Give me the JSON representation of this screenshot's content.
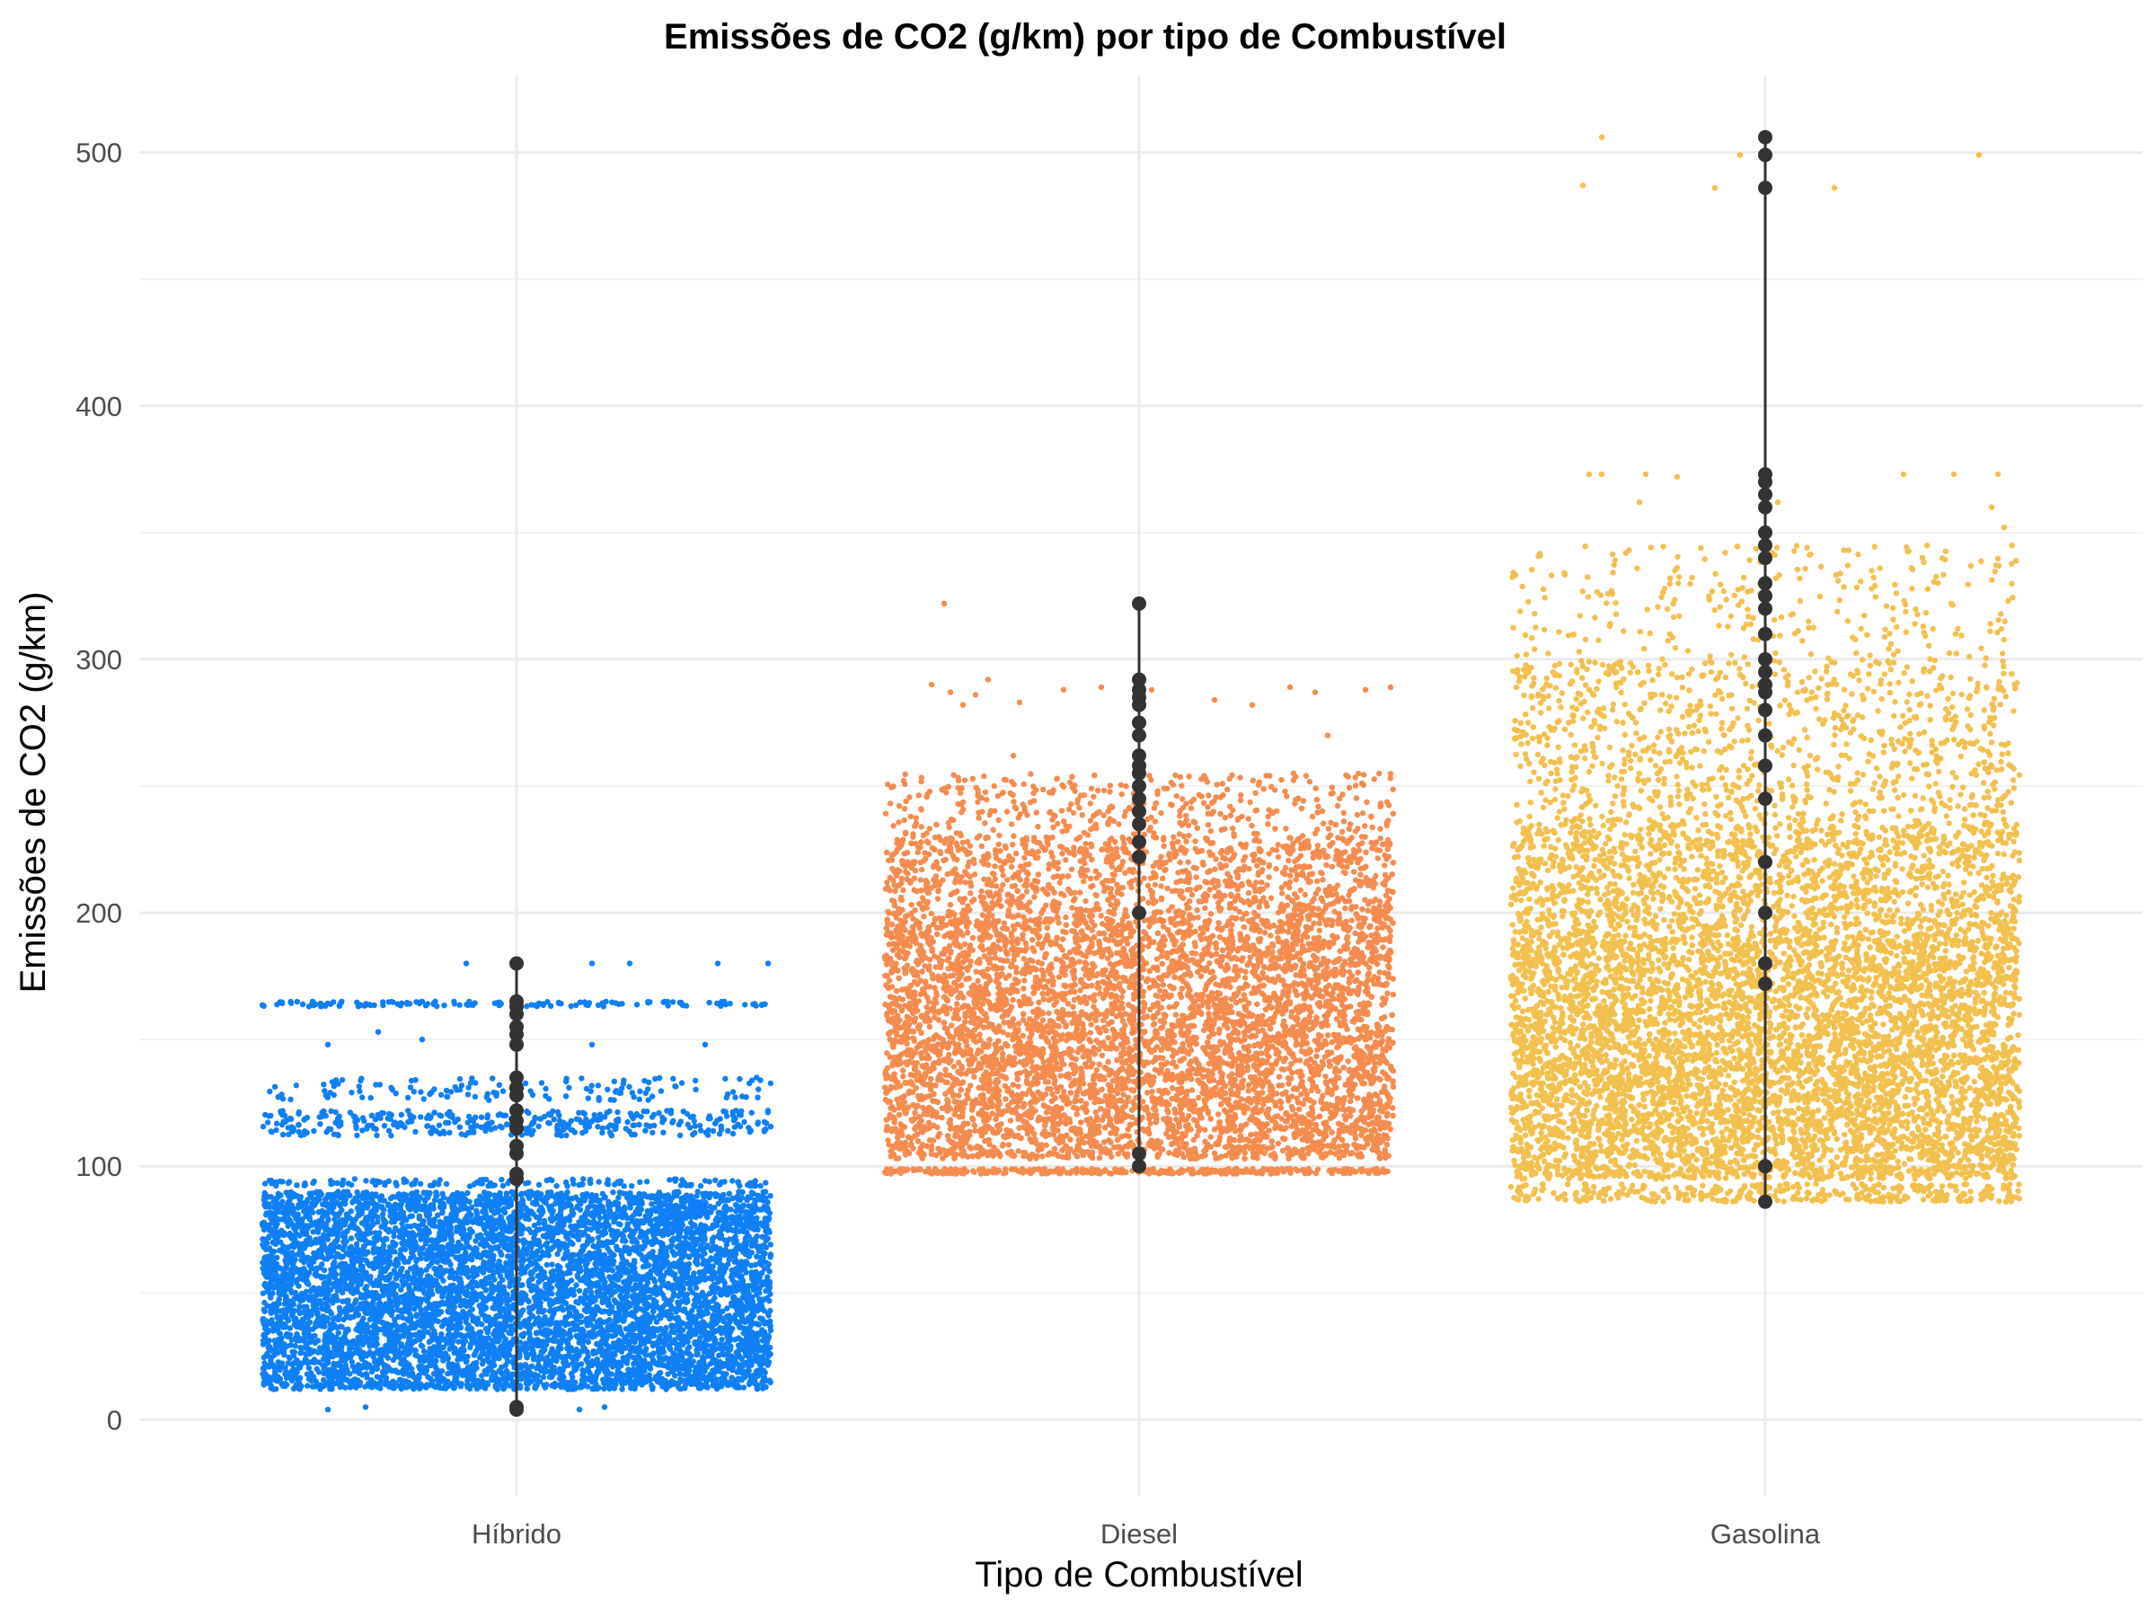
{
  "chart_data": {
    "type": "scatter",
    "title": "Emissões de CO2 (g/km) por tipo de Combustível",
    "xlabel": "Tipo de Combustível",
    "ylabel": "Emissões de CO2 (g/km)",
    "categories": [
      "Híbrido",
      "Diesel",
      "Gasolina"
    ],
    "ylim": [
      -30,
      530
    ],
    "yticks": [
      0,
      100,
      200,
      300,
      400,
      500
    ],
    "grid": true,
    "legend": "none",
    "series": [
      {
        "category": "Híbrido",
        "color": "#0f7ff5",
        "bands": [
          {
            "min": 12,
            "max": 90,
            "density": "very-high"
          },
          {
            "min": 92,
            "max": 95,
            "density": "medium"
          },
          {
            "min": 112,
            "max": 122,
            "density": "high"
          },
          {
            "min": 126,
            "max": 135,
            "density": "medium"
          },
          {
            "min": 163,
            "max": 165,
            "density": "medium"
          }
        ],
        "points": [
          4,
          5,
          5,
          106,
          108,
          148,
          149,
          150,
          153,
          155,
          160,
          180,
          180,
          180,
          180,
          180
        ],
        "jitter_points": [
          {
            "x": -0.3,
            "y": 148
          },
          {
            "x": -0.22,
            "y": 153
          },
          {
            "x": -0.15,
            "y": 150
          },
          {
            "x": 0.12,
            "y": 148
          },
          {
            "x": 0.3,
            "y": 148
          },
          {
            "x": -0.08,
            "y": 180
          },
          {
            "x": 0.12,
            "y": 180
          },
          {
            "x": 0.18,
            "y": 180
          },
          {
            "x": 0.32,
            "y": 180
          },
          {
            "x": 0.4,
            "y": 180
          },
          {
            "x": -0.3,
            "y": 4
          },
          {
            "x": -0.24,
            "y": 5
          },
          {
            "x": 0.1,
            "y": 4
          },
          {
            "x": 0.14,
            "y": 5
          }
        ],
        "median_points": [
          4,
          5,
          95,
          97,
          105,
          108,
          115,
          118,
          122,
          128,
          131,
          135,
          148,
          152,
          155,
          160,
          163,
          165,
          180
        ]
      },
      {
        "category": "Diesel",
        "color": "#f58c4e",
        "bands": [
          {
            "min": 103,
            "max": 198,
            "density": "very-high"
          },
          {
            "min": 198,
            "max": 230,
            "density": "high"
          },
          {
            "min": 230,
            "max": 255,
            "density": "medium"
          },
          {
            "min": 97,
            "max": 99,
            "density": "high"
          }
        ],
        "jitter_points": [
          {
            "x": -0.33,
            "y": 290
          },
          {
            "x": -0.3,
            "y": 287
          },
          {
            "x": -0.28,
            "y": 282
          },
          {
            "x": -0.26,
            "y": 286
          },
          {
            "x": -0.24,
            "y": 292
          },
          {
            "x": -0.19,
            "y": 283
          },
          {
            "x": -0.12,
            "y": 288
          },
          {
            "x": -0.06,
            "y": 289
          },
          {
            "x": 0.02,
            "y": 288
          },
          {
            "x": 0.12,
            "y": 284
          },
          {
            "x": 0.18,
            "y": 282
          },
          {
            "x": 0.24,
            "y": 289
          },
          {
            "x": 0.28,
            "y": 287
          },
          {
            "x": 0.36,
            "y": 288
          },
          {
            "x": 0.4,
            "y": 289
          },
          {
            "x": -0.31,
            "y": 322
          },
          {
            "x": -0.2,
            "y": 262
          },
          {
            "x": 0.3,
            "y": 270
          }
        ],
        "median_points": [
          100,
          105,
          200,
          222,
          228,
          235,
          240,
          245,
          250,
          255,
          258,
          262,
          270,
          275,
          282,
          285,
          288,
          292,
          322
        ]
      },
      {
        "category": "Gasolina",
        "color": "#f3c04f",
        "bands": [
          {
            "min": 95,
            "max": 190,
            "density": "very-high"
          },
          {
            "min": 190,
            "max": 235,
            "density": "high"
          },
          {
            "min": 235,
            "max": 300,
            "density": "medium"
          },
          {
            "min": 300,
            "max": 345,
            "density": "low"
          },
          {
            "min": 86,
            "max": 93,
            "density": "high"
          }
        ],
        "jitter_points": [
          {
            "x": -0.29,
            "y": 487
          },
          {
            "x": -0.28,
            "y": 373
          },
          {
            "x": -0.26,
            "y": 373
          },
          {
            "x": -0.19,
            "y": 373
          },
          {
            "x": -0.14,
            "y": 372
          },
          {
            "x": -0.08,
            "y": 486
          },
          {
            "x": -0.04,
            "y": 499
          },
          {
            "x": 0.11,
            "y": 486
          },
          {
            "x": 0.22,
            "y": 373
          },
          {
            "x": 0.3,
            "y": 373
          },
          {
            "x": 0.34,
            "y": 499
          },
          {
            "x": 0.37,
            "y": 373
          },
          {
            "x": -0.26,
            "y": 506
          },
          {
            "x": -0.2,
            "y": 362
          },
          {
            "x": 0.02,
            "y": 362
          },
          {
            "x": 0.36,
            "y": 360
          },
          {
            "x": 0.38,
            "y": 352
          }
        ],
        "median_points": [
          86,
          100,
          172,
          180,
          200,
          220,
          245,
          258,
          270,
          280,
          287,
          290,
          295,
          300,
          310,
          320,
          325,
          330,
          340,
          345,
          350,
          360,
          365,
          370,
          373,
          486,
          499,
          506
        ]
      }
    ]
  }
}
